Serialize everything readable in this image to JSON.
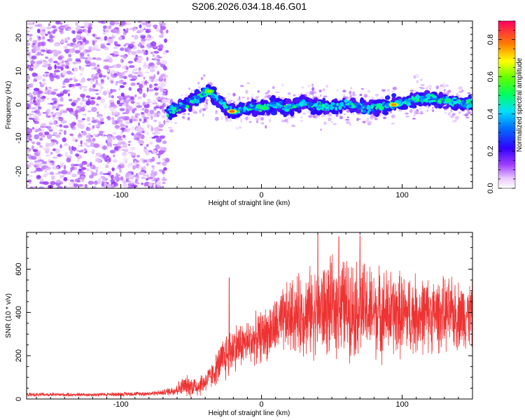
{
  "figure_title": "S206.2026.034.18.46.G01",
  "chart_data": [
    {
      "type": "heatmap",
      "title": "S206.2026.034.18.46.G01",
      "xlabel": "Height of straight line (km)",
      "ylabel": "Frequency (Hz)",
      "xlim": [
        -167,
        150
      ],
      "ylim": [
        -25,
        25
      ],
      "xticks": [
        -100,
        0,
        100
      ],
      "yticks": [
        -20,
        -10,
        0,
        10,
        20
      ],
      "colorbar": {
        "label": "Normalized spectral amplitude",
        "range": [
          0,
          0.9
        ],
        "ticks": [
          0.0,
          0.2,
          0.4,
          0.6,
          0.8
        ],
        "colormap": "rainbow (violet-blue-cyan-green-yellow-red)"
      },
      "regions": [
        {
          "name": "noise",
          "x_range": [
            -167,
            -67
          ],
          "y_range": [
            -25,
            25
          ],
          "amplitude": "low, scattered"
        },
        {
          "name": "signal-ridge",
          "x_range": [
            -67,
            150
          ],
          "center_frequency_hz": 0,
          "width_hz": 6,
          "amplitude": "high"
        }
      ],
      "ridge_center": [
        {
          "x": -65,
          "y": -2
        },
        {
          "x": -55,
          "y": 0
        },
        {
          "x": -45,
          "y": 2
        },
        {
          "x": -38,
          "y": 4
        },
        {
          "x": -30,
          "y": 1
        },
        {
          "x": -25,
          "y": -1
        },
        {
          "x": -20,
          "y": -2
        },
        {
          "x": -10,
          "y": -1
        },
        {
          "x": 0,
          "y": -1
        },
        {
          "x": 10,
          "y": 0
        },
        {
          "x": 20,
          "y": -1
        },
        {
          "x": 30,
          "y": 1
        },
        {
          "x": 45,
          "y": -1
        },
        {
          "x": 60,
          "y": 0
        },
        {
          "x": 75,
          "y": -1
        },
        {
          "x": 95,
          "y": 0
        },
        {
          "x": 115,
          "y": 2
        },
        {
          "x": 135,
          "y": 1
        },
        {
          "x": 150,
          "y": 0
        }
      ],
      "peaks": [
        {
          "x": -21,
          "y": -2,
          "value": 0.9
        },
        {
          "x": 94,
          "y": 0,
          "value": 0.85
        },
        {
          "x": -37,
          "y": 4,
          "value": 0.7
        },
        {
          "x": 2,
          "y": -1,
          "value": 0.6
        }
      ]
    },
    {
      "type": "line",
      "xlabel": "Height of straight line (km)",
      "ylabel": "SNR (10 * v/v)",
      "xlim": [
        -167,
        150
      ],
      "ylim": [
        0,
        770
      ],
      "xticks": [
        -100,
        0,
        100
      ],
      "yticks": [
        0,
        200,
        400,
        600
      ],
      "color": "#ee3333",
      "series": [
        {
          "name": "SNR envelope",
          "x": [
            -167,
            -120,
            -80,
            -70,
            -62,
            -55,
            -45,
            -40,
            -35,
            -30,
            -25,
            -20,
            -10,
            0,
            10,
            20,
            40,
            60,
            80,
            100,
            120,
            140,
            150
          ],
          "mean": [
            20,
            20,
            25,
            30,
            40,
            60,
            60,
            80,
            110,
            160,
            200,
            240,
            260,
            290,
            330,
            380,
            410,
            430,
            400,
            390,
            390,
            390,
            390
          ],
          "amp": [
            10,
            10,
            12,
            15,
            30,
            55,
            60,
            60,
            70,
            100,
            140,
            130,
            120,
            140,
            160,
            200,
            250,
            270,
            250,
            230,
            200,
            190,
            180
          ]
        }
      ],
      "peaks": [
        {
          "x": -23,
          "y": 560
        },
        {
          "x": 40,
          "y": 760
        },
        {
          "x": 55,
          "y": 750
        },
        {
          "x": 70,
          "y": 755
        }
      ]
    }
  ]
}
